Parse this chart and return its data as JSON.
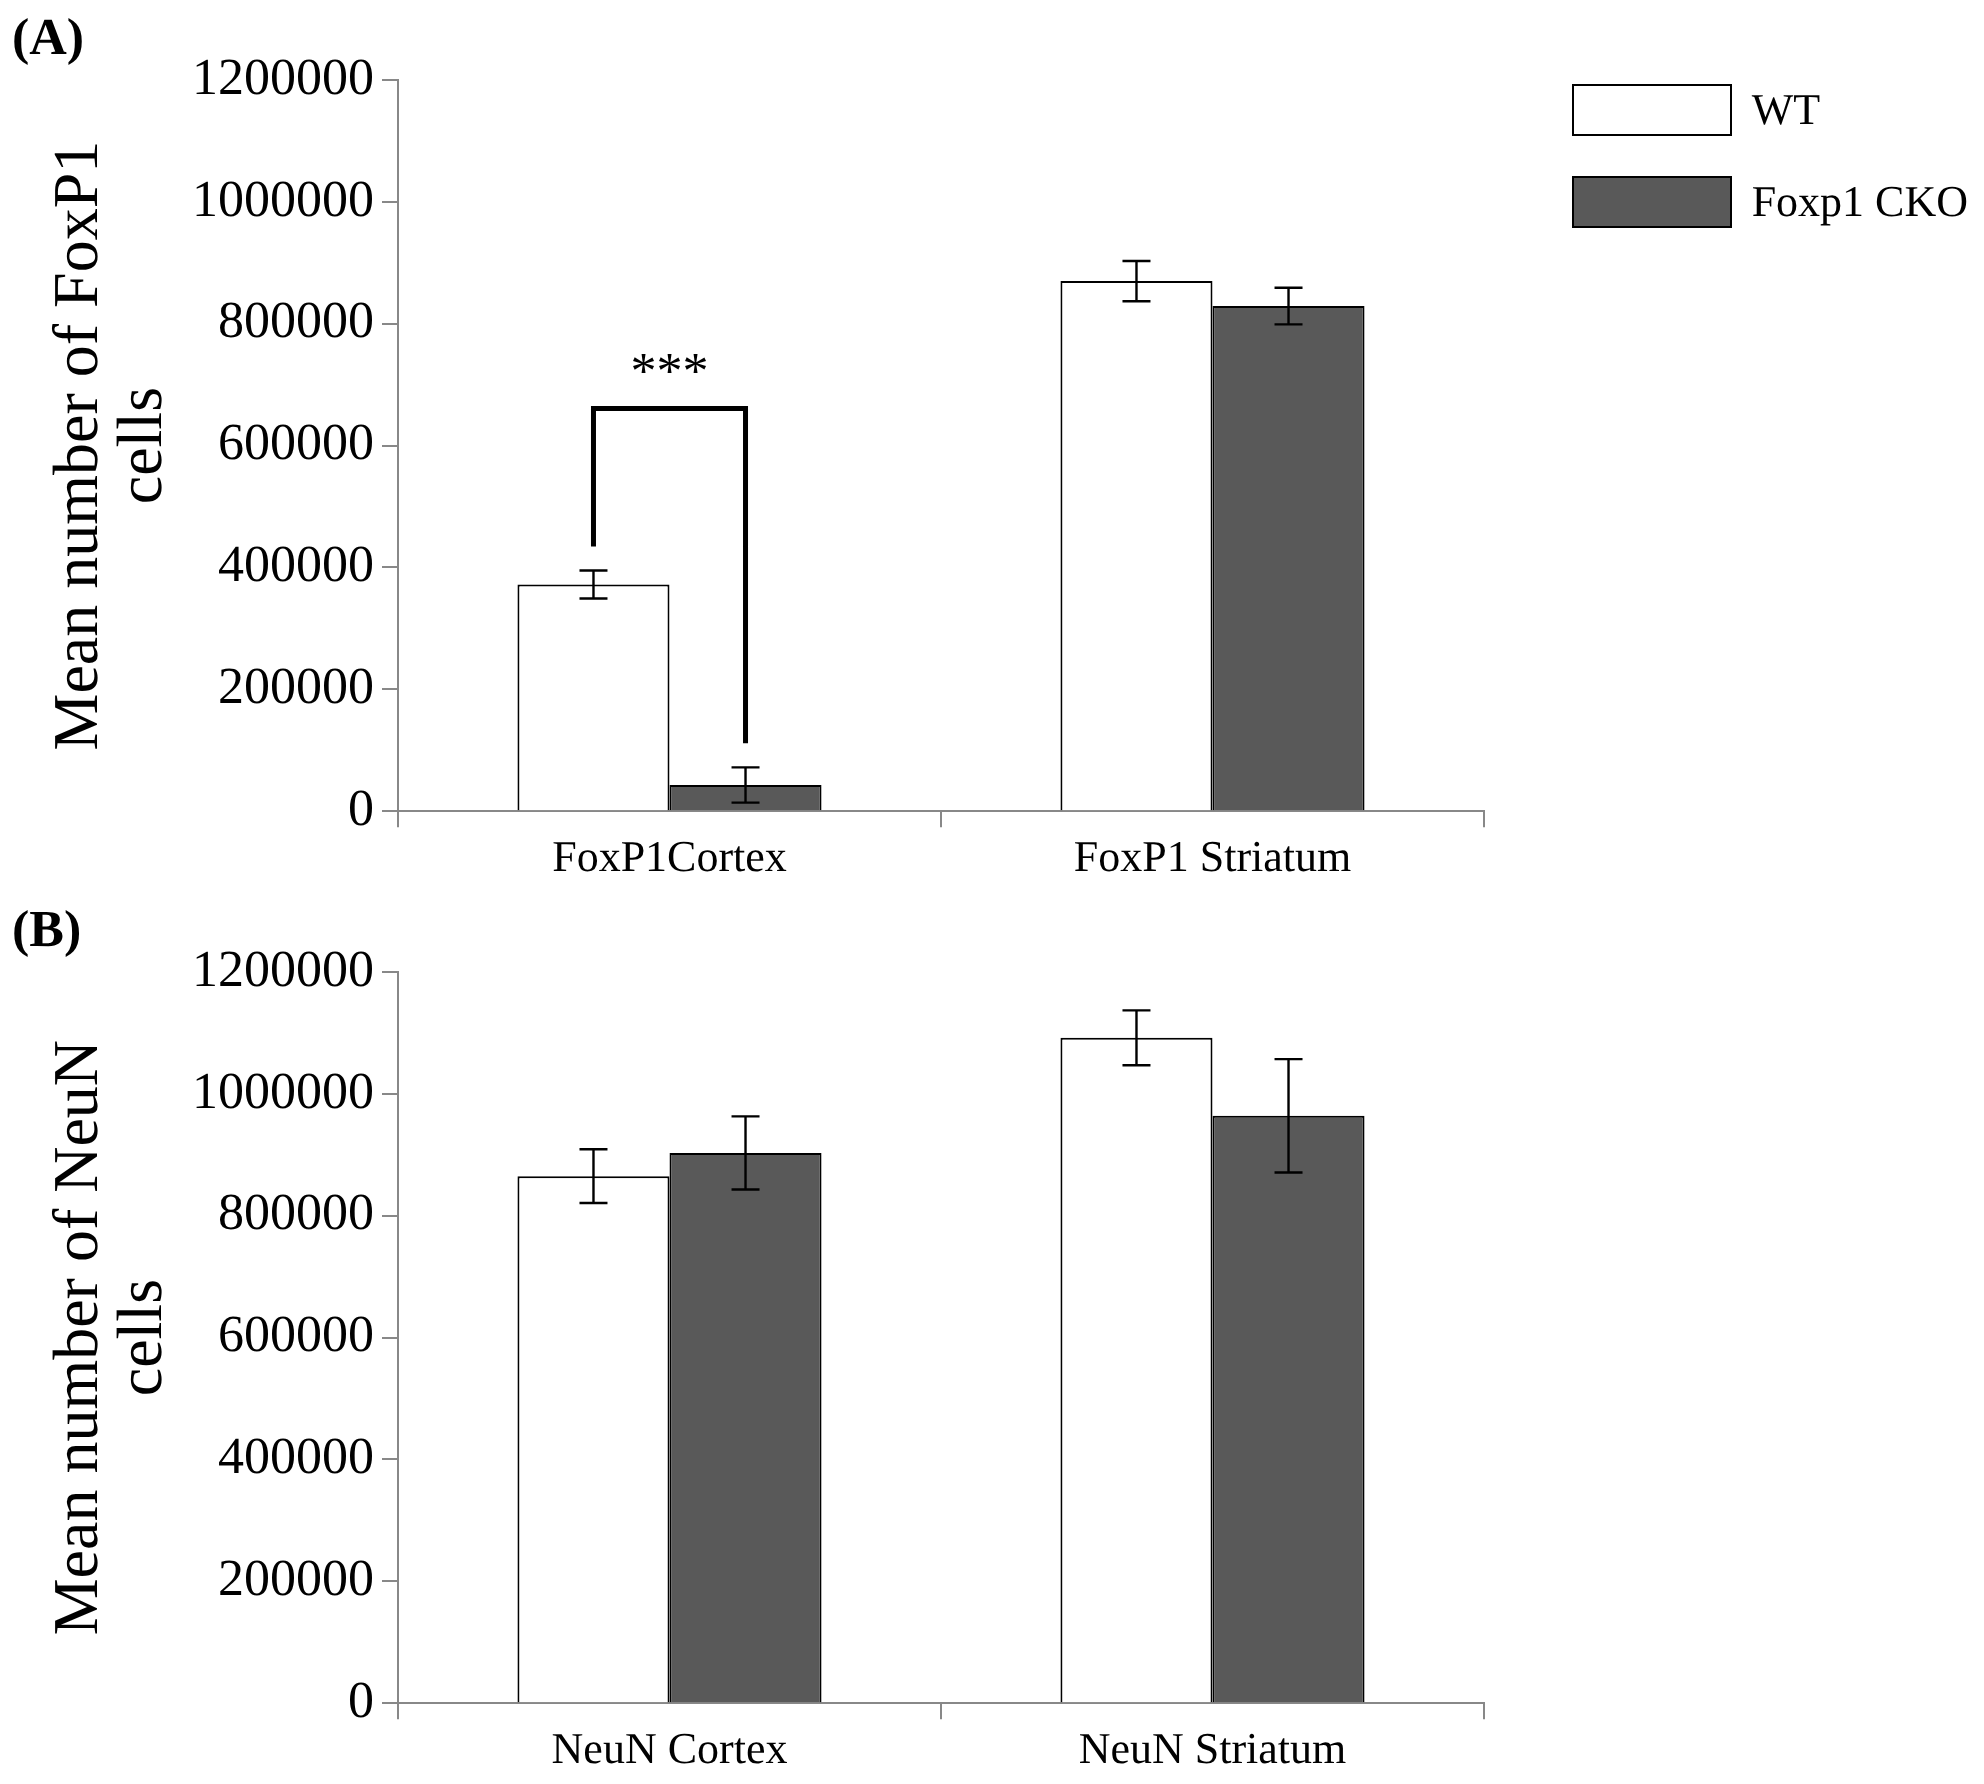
{
  "chart_data": [
    {
      "type": "bar",
      "ylabel": "Mean number of FoxP1 cells",
      "categories": [
        "FoxP1Cortex",
        "FoxP1 Striatum"
      ],
      "series": [
        {
          "name": "WT",
          "color": "#ffffff",
          "values": [
            372000,
            870000
          ],
          "errors": [
            23000,
            33000
          ]
        },
        {
          "name": "Foxp1 CKO",
          "color": "#595959",
          "values": [
            43000,
            829000
          ],
          "errors": [
            29000,
            30000
          ]
        }
      ],
      "ylim": [
        0,
        1200000
      ],
      "yticks": [
        0,
        200000,
        400000,
        600000,
        800000,
        1000000,
        1200000
      ],
      "grid": false,
      "legend": "top right",
      "title": "(A)",
      "annotations": [
        "***"
      ]
    },
    {
      "type": "bar",
      "ylabel": "Mean number of NeuN cells",
      "categories": [
        "NeuN Cortex",
        "NeuN Striatum"
      ],
      "series": [
        {
          "color": "#ffffff",
          "values": [
            865000,
            1092000
          ],
          "errors": [
            44000,
            45000
          ]
        },
        {
          "color": "#595959",
          "values": [
            903000,
            964000
          ],
          "errors": [
            60000,
            93000
          ]
        }
      ],
      "ylim": [
        0,
        1200000
      ],
      "yticks": [
        0,
        200000,
        400000,
        600000,
        800000,
        1000000,
        1200000
      ],
      "grid": false,
      "title": "(B)"
    }
  ]
}
